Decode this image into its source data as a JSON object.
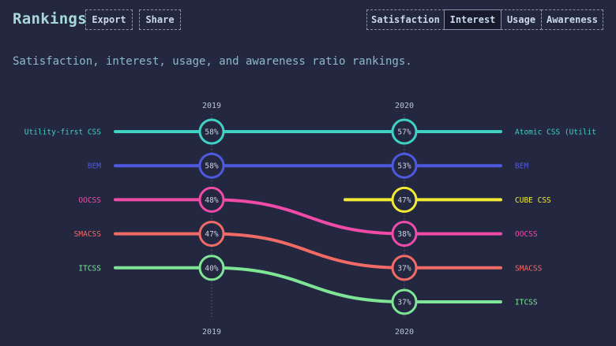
{
  "header": {
    "title": "Rankings",
    "export_label": "Export",
    "share_label": "Share",
    "tabs": [
      {
        "label": "Satisfaction",
        "active": false
      },
      {
        "label": "Interest",
        "active": true
      },
      {
        "label": "Usage",
        "active": false
      },
      {
        "label": "Awareness",
        "active": false
      }
    ]
  },
  "subtitle": "Satisfaction, interest, usage, and awareness ratio rankings.",
  "chart_data": {
    "type": "line",
    "x": [
      "2019",
      "2020"
    ],
    "series": [
      {
        "name": "Utility-first CSS",
        "end_label": "Atomic CSS (Utilit",
        "color": "#3ed1c4",
        "points": [
          {
            "year": "2019",
            "rank": 1,
            "value": "58%"
          },
          {
            "year": "2020",
            "rank": 1,
            "value": "57%"
          }
        ]
      },
      {
        "name": "BEM",
        "end_label": "BEM",
        "color": "#4f59e0",
        "points": [
          {
            "year": "2019",
            "rank": 2,
            "value": "58%"
          },
          {
            "year": "2020",
            "rank": 2,
            "value": "53%"
          }
        ]
      },
      {
        "name": "CUBE CSS",
        "end_label": "CUBE CSS",
        "color": "#f2ea35",
        "points": [
          {
            "year": "2020",
            "rank": 3,
            "value": "47%"
          }
        ]
      },
      {
        "name": "OOCSS",
        "end_label": "OOCSS",
        "color": "#f04ba8",
        "points": [
          {
            "year": "2019",
            "rank": 3,
            "value": "48%"
          },
          {
            "year": "2020",
            "rank": 4,
            "value": "38%"
          }
        ]
      },
      {
        "name": "SMACSS",
        "end_label": "SMACSS",
        "color": "#f26a66",
        "points": [
          {
            "year": "2019",
            "rank": 4,
            "value": "47%"
          },
          {
            "year": "2020",
            "rank": 5,
            "value": "37%"
          }
        ]
      },
      {
        "name": "ITCSS",
        "end_label": "ITCSS",
        "color": "#7fe595",
        "points": [
          {
            "year": "2019",
            "rank": 5,
            "value": "40%"
          },
          {
            "year": "2020",
            "rank": 6,
            "value": "37%"
          }
        ]
      }
    ]
  }
}
